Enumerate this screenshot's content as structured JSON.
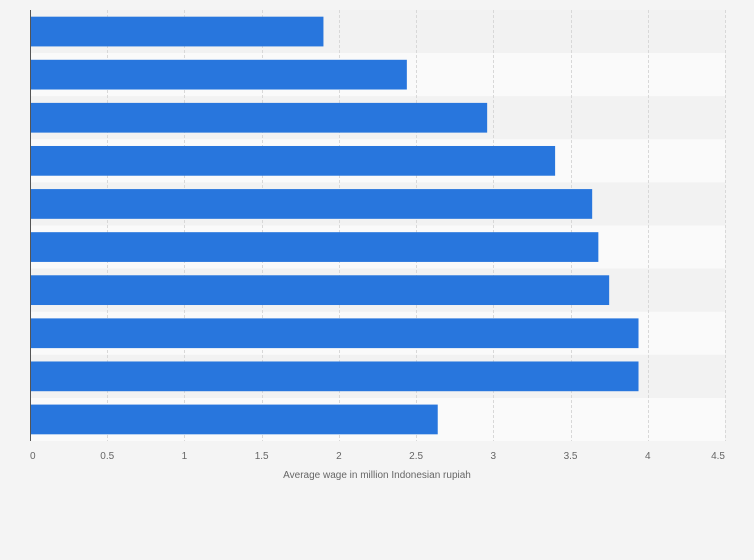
{
  "chart_data": {
    "type": "bar",
    "orientation": "horizontal",
    "categories": [
      "",
      "",
      "",
      "",
      "",
      "",
      "",
      "",
      "",
      ""
    ],
    "values": [
      1.9,
      2.44,
      2.96,
      3.4,
      3.64,
      3.68,
      3.75,
      3.94,
      3.94,
      2.64
    ],
    "title": "",
    "xlabel": "Average wage in million Indonesian rupiah",
    "ylabel": "",
    "xlim": [
      0,
      4.5
    ],
    "x_ticks": [
      "0",
      "0.5",
      "1",
      "1.5",
      "2",
      "2.5",
      "3",
      "3.5",
      "4",
      "4.5"
    ],
    "grid": "vertical dashed",
    "legend": "none",
    "colors": {
      "bar": "#2876dd",
      "band_light": "#fafafa",
      "band_dark": "#f2f2f2",
      "grid": "#d8d8d8",
      "axis": "#555555",
      "background": "#f4f4f4"
    }
  }
}
